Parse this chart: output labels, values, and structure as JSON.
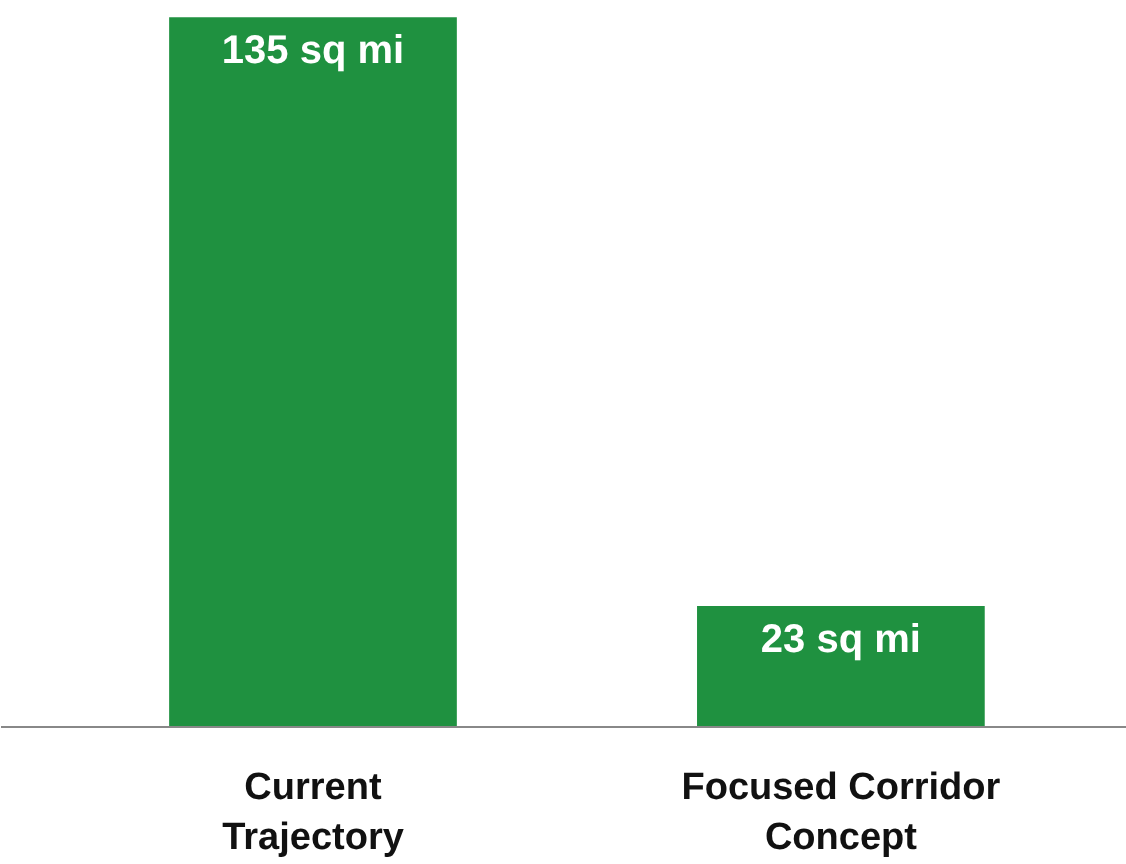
{
  "chart_data": {
    "type": "bar",
    "categories": [
      "Current\nTrajectory",
      "Focused Corridor\nConcept"
    ],
    "values": [
      135,
      23
    ],
    "color": "#1f9140",
    "value_labels": [
      "135 sq mi",
      "23 sq mi"
    ]
  }
}
